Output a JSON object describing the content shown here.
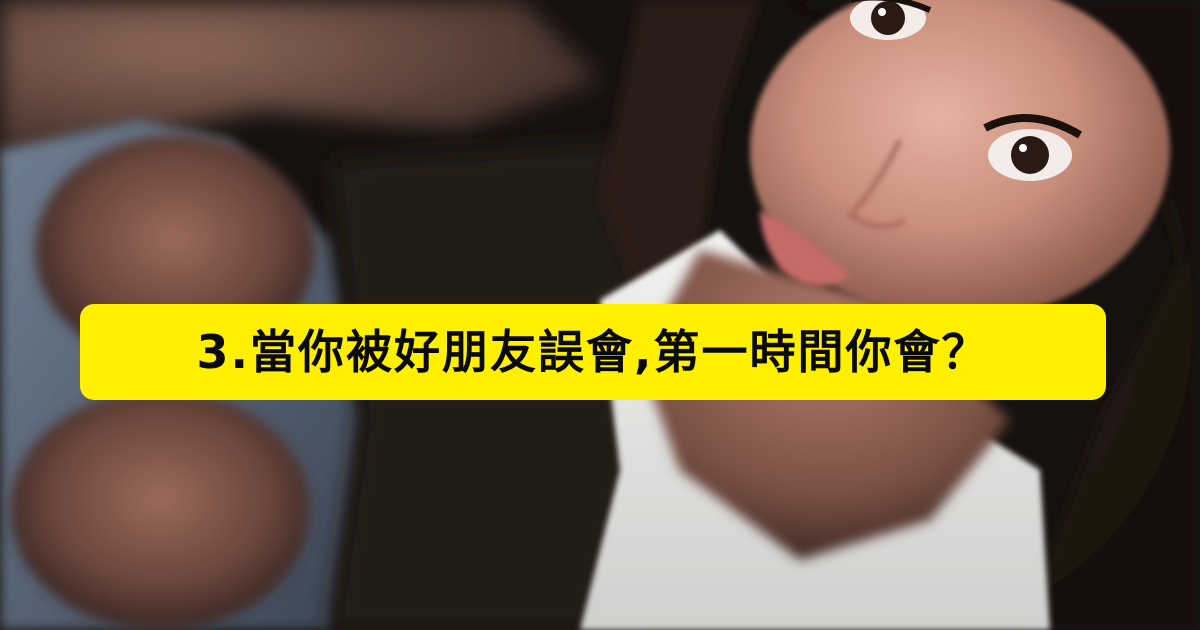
{
  "question": {
    "text": "3.當你被好朋友誤會,第一時間你會？"
  },
  "colors": {
    "banner_background": "#ffef00",
    "banner_text": "#0a0a0a"
  }
}
